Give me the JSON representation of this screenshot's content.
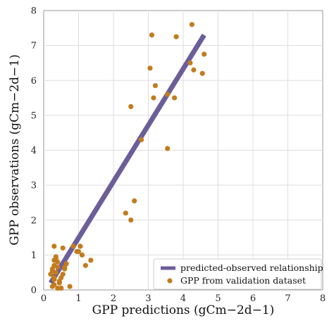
{
  "chart_data": {
    "type": "scatter",
    "title": "",
    "xlabel": "GPP predictions (gCm−2d−1)",
    "ylabel": "GPP observations (gCm−2d−1)",
    "xlim": [
      0,
      8
    ],
    "ylim": [
      0,
      8
    ],
    "xticks": [
      "0",
      "1",
      "2",
      "3",
      "4",
      "5",
      "6",
      "7",
      "8"
    ],
    "yticks": [
      "0",
      "1",
      "2",
      "3",
      "4",
      "5",
      "6",
      "7",
      "8"
    ],
    "grid": true,
    "legend_position": "bottom-right",
    "series": [
      {
        "name": "predicted-observed relationship",
        "kind": "line",
        "color": "#6B5E99",
        "x": [
          0.2,
          4.6
        ],
        "y": [
          0.2,
          7.3
        ]
      },
      {
        "name": "GPP from validation dataset",
        "kind": "scatter",
        "color": "#C27C1E",
        "x": [
          0.25,
          0.3,
          0.3,
          0.35,
          0.25,
          0.3,
          0.4,
          0.35,
          0.45,
          0.5,
          0.55,
          0.6,
          0.3,
          0.35,
          0.4,
          0.5,
          0.55,
          0.6,
          0.75,
          0.85,
          0.95,
          1.0,
          1.05,
          1.1,
          1.2,
          1.35,
          0.2,
          0.25,
          0.3,
          0.4,
          0.5,
          0.65,
          0.3,
          0.45,
          2.35,
          2.5,
          2.6,
          2.5,
          2.8,
          3.05,
          3.15,
          3.1,
          3.2,
          3.55,
          3.75,
          3.8,
          3.55,
          4.2,
          4.3,
          4.25,
          4.55,
          4.6
        ],
        "y": [
          0.1,
          0.15,
          0.3,
          0.5,
          0.6,
          0.7,
          0.8,
          0.9,
          0.25,
          0.35,
          0.45,
          0.6,
          1.25,
          0.95,
          0.05,
          0.05,
          1.2,
          0.65,
          0.1,
          1.25,
          1.1,
          1.1,
          1.25,
          1.0,
          0.7,
          0.85,
          0.45,
          0.55,
          0.85,
          0.65,
          0.05,
          0.75,
          0.35,
          0.2,
          2.2,
          2.0,
          2.55,
          5.25,
          4.3,
          6.35,
          5.5,
          7.3,
          5.85,
          4.05,
          5.5,
          7.25,
          5.6,
          6.5,
          6.3,
          7.6,
          6.2,
          6.75
        ]
      }
    ]
  }
}
